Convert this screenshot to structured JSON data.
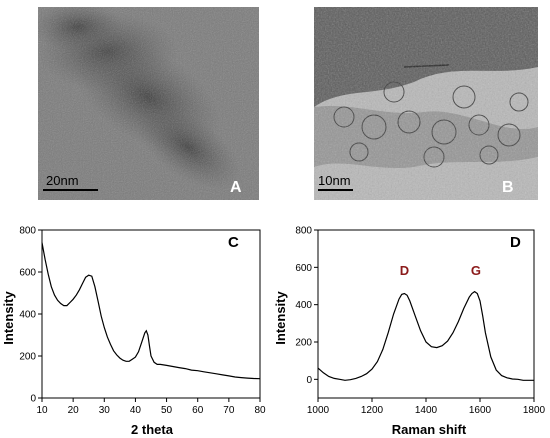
{
  "panels": {
    "a": {
      "letter": "A",
      "scale_bar": "20nm"
    },
    "b": {
      "letter": "B",
      "scale_bar": "10nm"
    }
  },
  "colors": {
    "peak_label": "#8b1a1a",
    "line": "#000000",
    "letter": "#ffffff"
  },
  "chart_data": [
    {
      "type": "line",
      "panel": "C",
      "title": "",
      "xlabel": "2 theta",
      "ylabel": "Intensity",
      "xlim": [
        10,
        80
      ],
      "ylim": [
        0,
        800
      ],
      "xticks": [
        10,
        20,
        30,
        40,
        50,
        60,
        70,
        80
      ],
      "yticks": [
        0,
        200,
        400,
        600,
        800
      ],
      "grid": false,
      "series": [
        {
          "x": [
            10,
            11,
            12,
            13,
            14,
            15,
            16,
            17,
            18,
            19,
            20,
            21,
            22,
            23,
            24,
            25,
            26,
            27,
            28,
            29,
            30,
            31,
            32,
            33,
            34,
            35,
            36,
            37,
            38,
            39,
            40,
            41,
            42,
            43,
            43.5,
            44,
            44.5,
            45,
            46,
            47,
            48,
            50,
            52,
            54,
            56,
            58,
            60,
            62,
            64,
            66,
            68,
            70,
            72,
            74,
            76,
            78,
            80
          ],
          "y": [
            740,
            660,
            590,
            530,
            490,
            465,
            450,
            440,
            440,
            455,
            470,
            490,
            515,
            545,
            575,
            585,
            580,
            530,
            460,
            390,
            335,
            290,
            255,
            225,
            205,
            190,
            180,
            175,
            175,
            185,
            195,
            220,
            265,
            310,
            320,
            300,
            250,
            200,
            170,
            160,
            160,
            155,
            150,
            145,
            140,
            133,
            130,
            125,
            120,
            115,
            110,
            105,
            100,
            97,
            95,
            93,
            92
          ]
        }
      ]
    },
    {
      "type": "line",
      "panel": "D",
      "title": "",
      "xlabel": "Raman shift",
      "ylabel": "Intensity",
      "xlim": [
        1000,
        1800
      ],
      "ylim": [
        -100,
        800
      ],
      "xticks": [
        1000,
        1200,
        1400,
        1600,
        1800
      ],
      "yticks": [
        0,
        200,
        400,
        600,
        800
      ],
      "grid": false,
      "annotations": [
        {
          "text": "D",
          "x": 1320,
          "y": 560
        },
        {
          "text": "G",
          "x": 1585,
          "y": 560
        }
      ],
      "series": [
        {
          "x": [
            1000,
            1020,
            1040,
            1060,
            1080,
            1100,
            1120,
            1140,
            1160,
            1180,
            1200,
            1220,
            1240,
            1260,
            1280,
            1300,
            1310,
            1320,
            1330,
            1340,
            1360,
            1380,
            1400,
            1420,
            1440,
            1460,
            1480,
            1500,
            1520,
            1540,
            1560,
            1570,
            1580,
            1590,
            1600,
            1610,
            1620,
            1640,
            1660,
            1680,
            1700,
            1720,
            1740,
            1760,
            1780,
            1800
          ],
          "y": [
            60,
            35,
            15,
            5,
            0,
            -5,
            -2,
            5,
            15,
            30,
            55,
            95,
            160,
            250,
            350,
            430,
            455,
            460,
            450,
            420,
            340,
            260,
            200,
            175,
            170,
            180,
            205,
            250,
            310,
            380,
            440,
            460,
            470,
            460,
            420,
            340,
            250,
            120,
            50,
            20,
            8,
            2,
            0,
            -5,
            -5,
            -5
          ]
        }
      ]
    }
  ]
}
